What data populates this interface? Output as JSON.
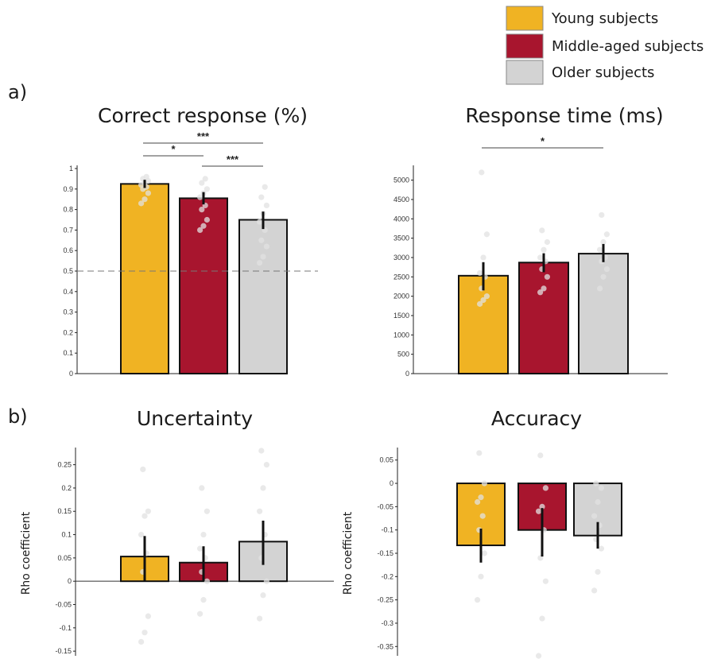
{
  "figure": {
    "legend": [
      {
        "label": "Young subjects",
        "color": "#f0b323"
      },
      {
        "label": "Middle-aged subjects",
        "color": "#a8152e"
      },
      {
        "label": "Older subjects",
        "color": "#d3d3d3"
      }
    ],
    "panel_labels": {
      "a": "a)",
      "b": "b)"
    }
  },
  "chart_data": [
    {
      "type": "bar",
      "title": "Correct response (%)",
      "xlabel": "",
      "ylabel": "",
      "categories": [
        "Young subjects",
        "Middle-aged subjects",
        "Older subjects"
      ],
      "values": [
        0.925,
        0.855,
        0.75
      ],
      "error_bars": [
        [
          0.905,
          0.945
        ],
        [
          0.825,
          0.885
        ],
        [
          0.705,
          0.79
        ]
      ],
      "ylim": [
        0,
        1
      ],
      "yticks": [
        "0",
        "0.1",
        "0.2",
        "0.3",
        "0.4",
        "0.5",
        "0.6",
        "0.7",
        "0.8",
        "0.9",
        "1"
      ],
      "reference_line": 0.5,
      "points": [
        [
          0.83,
          0.85,
          0.88,
          0.9,
          0.91,
          0.92,
          0.93,
          0.94,
          0.95,
          0.96
        ],
        [
          0.7,
          0.72,
          0.75,
          0.8,
          0.82,
          0.86,
          0.88,
          0.9,
          0.93,
          0.95
        ],
        [
          0.54,
          0.57,
          0.62,
          0.65,
          0.7,
          0.74,
          0.78,
          0.82,
          0.86,
          0.91
        ]
      ],
      "significance": [
        {
          "from": 0,
          "to": 2,
          "label": "***"
        },
        {
          "from": 0,
          "to": 1,
          "label": "*"
        },
        {
          "from": 1,
          "to": 2,
          "label": "***"
        }
      ],
      "grid": false
    },
    {
      "type": "bar",
      "title": "Response time (ms)",
      "xlabel": "",
      "ylabel": "",
      "categories": [
        "Young subjects",
        "Middle-aged subjects",
        "Older subjects"
      ],
      "values": [
        2530,
        2870,
        3100
      ],
      "error_bars": [
        [
          2150,
          2880
        ],
        [
          2620,
          3110
        ],
        [
          2880,
          3350
        ]
      ],
      "ylim": [
        0,
        5300
      ],
      "yticks": [
        "0",
        "500",
        "1000",
        "1500",
        "2000",
        "2500",
        "3000",
        "3500",
        "4000",
        "4500",
        "5000"
      ],
      "points": [
        [
          1800,
          1900,
          2000,
          2200,
          2500,
          2600,
          3000,
          3600,
          5200
        ],
        [
          2100,
          2200,
          2500,
          2700,
          2900,
          3000,
          3200,
          3400,
          3700
        ],
        [
          2200,
          2500,
          2700,
          2900,
          3000,
          3200,
          3400,
          3600,
          4100
        ]
      ],
      "significance": [
        {
          "from": 0,
          "to": 2,
          "label": "*"
        }
      ],
      "grid": false
    },
    {
      "type": "bar",
      "title": "Uncertainty",
      "xlabel": "",
      "ylabel": "Rho coefficient",
      "categories": [
        "Young subjects",
        "Middle-aged subjects",
        "Older subjects"
      ],
      "values": [
        0.053,
        0.04,
        0.085
      ],
      "error_bars": [
        [
          0.0,
          0.097
        ],
        [
          0.0,
          0.075
        ],
        [
          0.035,
          0.13
        ]
      ],
      "ylim": [
        -0.16,
        0.28
      ],
      "yticks": [
        "-0.15",
        "-0.1",
        "-0.05",
        "0",
        "0.05",
        "0.1",
        "0.15",
        "0.2",
        "0.25"
      ],
      "points": [
        [
          -0.13,
          -0.11,
          -0.075,
          0.02,
          0.06,
          0.1,
          0.14,
          0.15,
          0.24
        ],
        [
          -0.07,
          -0.04,
          0.0,
          0.02,
          0.05,
          0.07,
          0.1,
          0.15,
          0.2
        ],
        [
          -0.08,
          -0.03,
          0.0,
          0.05,
          0.1,
          0.15,
          0.2,
          0.25,
          0.28
        ]
      ],
      "zero_line": true,
      "grid": false
    },
    {
      "type": "bar",
      "title": "Accuracy",
      "xlabel": "",
      "ylabel": "Rho coefficient",
      "categories": [
        "Young subjects",
        "Middle-aged subjects",
        "Older subjects"
      ],
      "values": [
        -0.133,
        -0.1,
        -0.112
      ],
      "error_bars": [
        [
          -0.17,
          -0.097
        ],
        [
          -0.157,
          -0.053
        ],
        [
          -0.14,
          -0.083
        ]
      ],
      "ylim": [
        -0.37,
        0.07
      ],
      "yticks": [
        "-0.35",
        "-0.3",
        "-0.25",
        "-0.2",
        "-0.15",
        "-0.1",
        "-0.05",
        "0",
        "0.05"
      ],
      "points": [
        [
          -0.25,
          -0.2,
          -0.15,
          -0.1,
          -0.07,
          -0.04,
          -0.03,
          0.0,
          0.065
        ],
        [
          -0.37,
          -0.29,
          -0.21,
          -0.16,
          -0.1,
          -0.06,
          -0.05,
          -0.01,
          0.06
        ],
        [
          -0.23,
          -0.19,
          -0.14,
          -0.12,
          -0.09,
          -0.07,
          -0.04,
          -0.01,
          0.0
        ]
      ],
      "grid": false
    }
  ]
}
